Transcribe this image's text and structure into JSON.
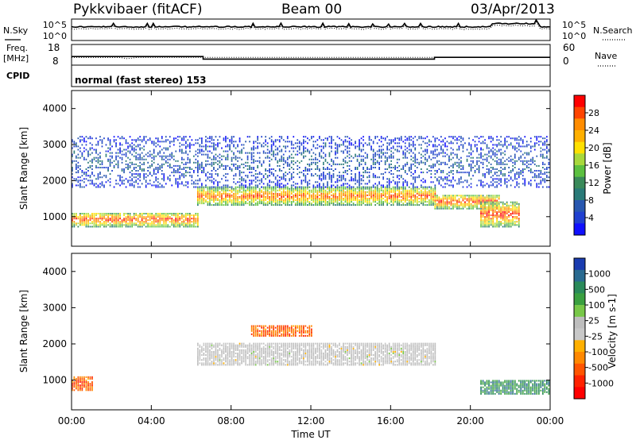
{
  "header": {
    "station": "Pykkvibaer (fitACF)",
    "beam": "Beam 00",
    "date": "03/Apr/2013"
  },
  "noise_panel": {
    "left_label": "N.Sky",
    "right_label": "N.Search",
    "y_ticks": [
      "10^5",
      "10^0"
    ]
  },
  "freq_panel": {
    "left_label_1": "Freq.",
    "left_label_2": "[MHz]",
    "right_label": "Nave",
    "left_ticks": [
      "18",
      "8"
    ],
    "right_ticks": [
      "60",
      "0"
    ],
    "freq_trace": [
      {
        "t": 0,
        "f": 12.1
      },
      {
        "t": 6.6,
        "f": 12.1
      },
      {
        "t": 6.6,
        "f": 10.4
      },
      {
        "t": 18.2,
        "f": 10.4
      },
      {
        "t": 18.2,
        "f": 11.6
      },
      {
        "t": 24,
        "f": 11.6
      }
    ],
    "nave_trace": [
      {
        "t": 0,
        "n": 21
      },
      {
        "t": 2.4,
        "n": 21
      },
      {
        "t": 2.8,
        "n": 16
      },
      {
        "t": 3.3,
        "n": 21
      },
      {
        "t": 24,
        "n": 21
      }
    ]
  },
  "cpid": {
    "label": "CPID",
    "value": "normal (fast stereo) 153"
  },
  "chart_data": [
    {
      "type": "heatmap",
      "name": "power",
      "ylabel": "Slant Range [km]",
      "xlabel": "Time UT",
      "xlim": [
        0,
        24
      ],
      "ylim": [
        180,
        4500
      ],
      "y_ticks": [
        1000,
        2000,
        3000,
        4000
      ],
      "colorbar_label": "Power [dB]",
      "colorbar_ticks": [
        "28",
        "24",
        "20",
        "16",
        "12",
        "8",
        "4"
      ],
      "colorbar_colors": [
        "#ff0000",
        "#ff4400",
        "#ff8c00",
        "#ffb000",
        "#ffe000",
        "#a8d83c",
        "#5cc040",
        "#3a8a5a",
        "#2a7a78",
        "#2858b0",
        "#2040d0",
        "#1010ff"
      ],
      "echo_bands": [
        {
          "t0": 0.0,
          "t1": 6.3,
          "r0": 700,
          "r1": 1100,
          "level": 0.95
        },
        {
          "t0": 6.3,
          "t1": 18.2,
          "r0": 1300,
          "r1": 1800,
          "level": 0.9
        },
        {
          "t0": 18.2,
          "t1": 21.5,
          "r0": 1200,
          "r1": 1600,
          "level": 0.95
        },
        {
          "t0": 20.5,
          "t1": 22.5,
          "r0": 700,
          "r1": 1400,
          "level": 0.98
        },
        {
          "t0": 0.0,
          "t1": 24.0,
          "r0": 1800,
          "r1": 3200,
          "level": 0.2
        }
      ]
    },
    {
      "type": "heatmap",
      "name": "velocity",
      "ylabel": "Slant Range [km]",
      "xlabel": "Time UT",
      "xlim": [
        0,
        24
      ],
      "ylim": [
        180,
        4500
      ],
      "y_ticks": [
        1000,
        2000,
        3000,
        4000
      ],
      "x_ticks": [
        "00:00",
        "04:00",
        "08:00",
        "12:00",
        "16:00",
        "20:00",
        "00:00"
      ],
      "colorbar_label": "Velocity [m s-1]",
      "colorbar_ticks": [
        "1000",
        "500",
        "100",
        "25",
        "-25",
        "-100",
        "-500",
        "-1000"
      ],
      "colorbar_colors": [
        "#1a3cb0",
        "#2a6a90",
        "#2a8a5a",
        "#3aa040",
        "#78c848",
        "#bebebe",
        "#c8c8c8",
        "#ffb000",
        "#ff8800",
        "#ff5500",
        "#ff2200",
        "#ff0000"
      ],
      "echo_bands": [
        {
          "t0": 6.3,
          "t1": 18.2,
          "r0": 1400,
          "r1": 2000,
          "level": 0.0
        },
        {
          "t0": 9.0,
          "t1": 12.0,
          "r0": 2200,
          "r1": 2500,
          "level": -0.6
        },
        {
          "t0": 0.0,
          "t1": 1.0,
          "r0": 700,
          "r1": 1100,
          "level": -0.6
        },
        {
          "t0": 20.5,
          "t1": 24.0,
          "r0": 600,
          "r1": 1000,
          "level": 0.6
        }
      ]
    }
  ]
}
